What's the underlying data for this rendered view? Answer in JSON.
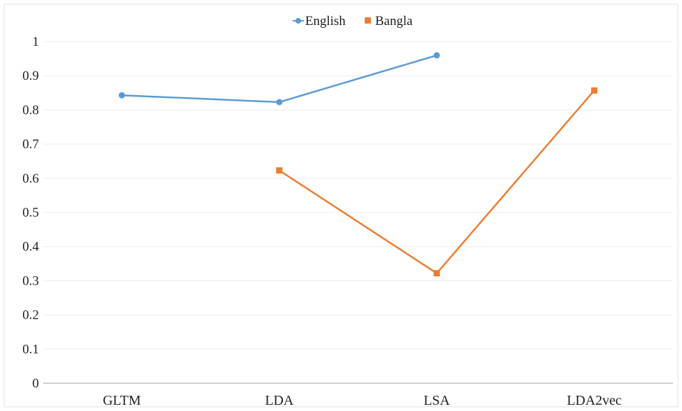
{
  "chart_data": {
    "type": "line",
    "categories": [
      "GLTM",
      "LDA",
      "LSA",
      "LDA2vec"
    ],
    "series": [
      {
        "name": "English",
        "values": [
          0.843,
          0.823,
          0.96,
          null
        ],
        "color": "#5B9BD5",
        "marker": "diamond"
      },
      {
        "name": "Bangla",
        "values": [
          null,
          0.623,
          0.322,
          0.857
        ],
        "color": "#ED7D31",
        "marker": "square"
      }
    ],
    "yticks": [
      "0",
      "0.1",
      "0.2",
      "0.3",
      "0.4",
      "0.5",
      "0.6",
      "0.7",
      "0.8",
      "0.9",
      "1"
    ],
    "ylim": [
      0,
      1
    ],
    "grid": true,
    "legend_position": "top-center",
    "title": "",
    "xlabel": "",
    "ylabel": ""
  }
}
